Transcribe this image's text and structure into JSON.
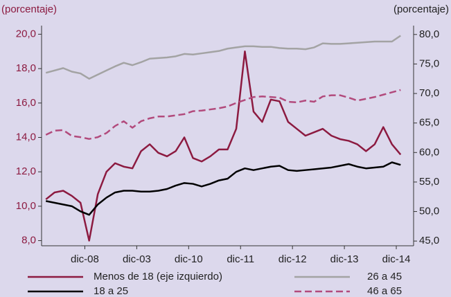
{
  "chart_data": {
    "type": "line",
    "y_label": "(porcentaje)",
    "y2_label": "(porcentaje)",
    "x": [
      -9,
      -7,
      -5,
      -3,
      -1,
      1,
      3,
      5,
      7,
      9,
      11,
      13,
      15,
      17,
      19,
      21,
      23,
      25,
      27,
      29,
      31,
      33,
      35,
      37,
      39,
      41,
      43,
      45,
      47,
      49,
      51,
      53,
      55,
      57,
      59,
      61,
      63,
      65,
      67,
      69,
      71,
      73
    ],
    "xlim": [
      -10,
      76
    ],
    "xticks": [
      {
        "value": 0,
        "label": "dic-08"
      },
      {
        "value": 12,
        "label": "dic-03"
      },
      {
        "value": 24,
        "label": "dic-10"
      },
      {
        "value": 36,
        "label": "dic-11"
      },
      {
        "value": 48,
        "label": "dic-12"
      },
      {
        "value": 60,
        "label": "dic-13"
      },
      {
        "value": 72,
        "label": "dic-14"
      }
    ],
    "ylim": [
      7.7,
      20.5
    ],
    "yticks": [
      {
        "value": 8,
        "label": "8,0"
      },
      {
        "value": 10,
        "label": "10,0"
      },
      {
        "value": 12,
        "label": "12,0"
      },
      {
        "value": 14,
        "label": "14,0"
      },
      {
        "value": 16,
        "label": "16,0"
      },
      {
        "value": 18,
        "label": "18,0"
      },
      {
        "value": 20,
        "label": "20,0"
      }
    ],
    "y2lim": [
      44.2,
      81.5
    ],
    "y2ticks": [
      {
        "value": 45,
        "label": "45,0"
      },
      {
        "value": 50,
        "label": "50,0"
      },
      {
        "value": 55,
        "label": "55,0"
      },
      {
        "value": 60,
        "label": "60,0"
      },
      {
        "value": 65,
        "label": "65,0"
      },
      {
        "value": 70,
        "label": "70,0"
      },
      {
        "value": 75,
        "label": "75,0"
      },
      {
        "value": 80,
        "label": "80,0"
      }
    ],
    "series": [
      {
        "name": "Menos de 18 (eje izquierdo)",
        "color": "#8c1a40",
        "dash": false,
        "values": [
          10.4,
          10.8,
          10.9,
          10.6,
          10.2,
          8.0,
          10.7,
          12.0,
          12.5,
          12.3,
          12.2,
          13.2,
          13.6,
          13.1,
          12.9,
          13.2,
          14.0,
          12.8,
          12.6,
          12.9,
          13.3,
          13.3,
          14.5,
          19.0,
          15.5,
          14.9,
          16.2,
          16.1,
          14.9,
          14.5,
          14.1,
          14.3,
          14.5,
          14.1,
          13.9,
          13.8,
          13.6,
          13.2,
          13.6,
          14.6,
          13.6,
          13.0
        ]
      },
      {
        "name": "18 a 25",
        "color": "#000000",
        "dash": false,
        "values": [
          10.3,
          10.2,
          10.1,
          10.0,
          9.7,
          9.5,
          10.1,
          10.5,
          10.8,
          10.9,
          10.9,
          10.85,
          10.85,
          10.9,
          11.0,
          11.2,
          11.35,
          11.3,
          11.15,
          11.3,
          11.5,
          11.6,
          12.0,
          12.2,
          12.1,
          12.2,
          12.3,
          12.35,
          12.1,
          12.05,
          12.1,
          12.15,
          12.2,
          12.25,
          12.35,
          12.45,
          12.3,
          12.2,
          12.25,
          12.3,
          12.55,
          12.4
        ]
      },
      {
        "name": "26 a 45",
        "color": "#a3a3a3",
        "dash": false,
        "axis": "y2",
        "values": [
          73.5,
          73.9,
          74.3,
          73.7,
          73.4,
          72.5,
          73.2,
          73.9,
          74.6,
          75.2,
          74.8,
          75.3,
          75.9,
          76.0,
          76.1,
          76.3,
          76.7,
          76.6,
          76.8,
          77.0,
          77.2,
          77.6,
          77.8,
          78.0,
          78.0,
          77.9,
          77.9,
          77.7,
          77.6,
          77.6,
          77.5,
          77.8,
          78.5,
          78.4,
          78.4,
          78.5,
          78.6,
          78.7,
          78.8,
          78.8,
          78.8,
          79.8
        ]
      },
      {
        "name": "46 a 65",
        "color": "#b24a7c",
        "dash": true,
        "axis": "y2",
        "values": [
          63.0,
          63.7,
          63.8,
          62.8,
          62.6,
          62.3,
          62.6,
          63.3,
          64.5,
          65.3,
          64.2,
          65.3,
          65.8,
          66.1,
          66.1,
          66.3,
          66.5,
          67.0,
          67.1,
          67.3,
          67.5,
          67.8,
          68.4,
          68.9,
          69.4,
          69.5,
          69.4,
          69.3,
          68.6,
          68.5,
          68.8,
          68.6,
          69.5,
          69.7,
          69.7,
          69.3,
          68.8,
          69.1,
          69.4,
          69.8,
          70.2,
          70.6
        ]
      }
    ]
  }
}
